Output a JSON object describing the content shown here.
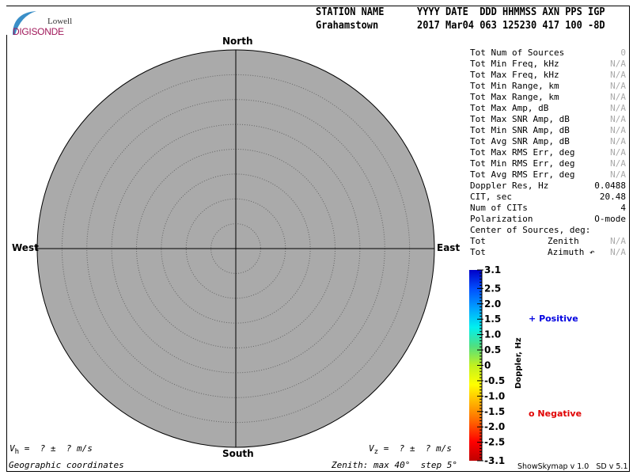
{
  "logo": {
    "line1": "Lowell",
    "line2": "DIGISONDE"
  },
  "header": {
    "labels": {
      "station": "STATION NAME",
      "rest": "YYYY DATE  DDD HHMMSS AXN PPS IGP"
    },
    "values": {
      "station": "Grahamstown",
      "rest": "2017 Mar04 063 125230 417 100 -8D"
    }
  },
  "compass": {
    "north": "North",
    "south": "South",
    "east": "East",
    "west": "West"
  },
  "stats": [
    {
      "label": "Tot Num of Sources",
      "value": "0",
      "dim": true
    },
    {
      "label": "Tot Min Freq, kHz",
      "value": "N/A",
      "dim": true
    },
    {
      "label": "Tot Max Freq, kHz",
      "value": "N/A",
      "dim": true
    },
    {
      "label": "Tot Min Range, km",
      "value": "N/A",
      "dim": true
    },
    {
      "label": "Tot Max Range, km",
      "value": "N/A",
      "dim": true
    },
    {
      "label": "Tot Max Amp, dB",
      "value": "N/A",
      "dim": true
    },
    {
      "label": "Tot Max SNR Amp, dB",
      "value": "N/A",
      "dim": true
    },
    {
      "label": "Tot Min SNR Amp, dB",
      "value": "N/A",
      "dim": true
    },
    {
      "label": "Tot Avg SNR Amp, dB",
      "value": "N/A",
      "dim": true
    },
    {
      "label": "Tot Max RMS Err, deg",
      "value": "N/A",
      "dim": true
    },
    {
      "label": "Tot Min RMS Err, deg",
      "value": "N/A",
      "dim": true
    },
    {
      "label": "Tot Avg RMS Err, deg",
      "value": "N/A",
      "dim": true
    },
    {
      "label": "Doppler Res, Hz",
      "value": "0.0488",
      "dim": false
    },
    {
      "label": "CIT, sec",
      "value": "20.48",
      "dim": false
    },
    {
      "label": "Num of CITs",
      "value": "4",
      "dim": false
    },
    {
      "label": "Polarization",
      "value": "O-mode",
      "dim": false
    },
    {
      "label": "Center of Sources, deg:",
      "value": "",
      "dim": false
    },
    {
      "label": "Tot",
      "mid": "Zenith",
      "value": "N/A",
      "dim": true
    },
    {
      "label": "Tot",
      "mid": "Azimuth ↶",
      "value": "N/A",
      "dim": true
    }
  ],
  "colorbar": {
    "label": "Doppler, Hz",
    "ticks": [
      "3.1",
      "2.5",
      "2.0",
      "1.5",
      "1.0",
      "0.5",
      "0",
      "-0.5",
      "-1.0",
      "-1.5",
      "-2.0",
      "-2.5",
      "-3.1"
    ],
    "range": [
      -3.1,
      3.1
    ],
    "colors": [
      "#0000c8",
      "#0050ff",
      "#00a0ff",
      "#00f0f0",
      "#50e080",
      "#c0f020",
      "#ffff00",
      "#ffb000",
      "#ff6000",
      "#ff0000",
      "#c00000"
    ]
  },
  "legend": {
    "positive": {
      "symbol": "+",
      "label": "Positive",
      "color": "#0000e0"
    },
    "negative": {
      "symbol": "o",
      "label": "Negative",
      "color": "#e00000"
    }
  },
  "footer": {
    "vh": {
      "sym": "V",
      "sub": "h",
      "text": " =  ? ±  ? m/s"
    },
    "vz": {
      "sym": "V",
      "sub": "z",
      "text": " =  ? ±  ? m/s"
    },
    "coords": "Geographic coordinates",
    "zenith": "Zenith: max 40°  step 5°",
    "version": "ShowSkymap v 1.0   SD v 5.1"
  },
  "skymap": {
    "zenith_max_deg": 40,
    "zenith_step_deg": 5,
    "background": "#aaaaaa"
  }
}
